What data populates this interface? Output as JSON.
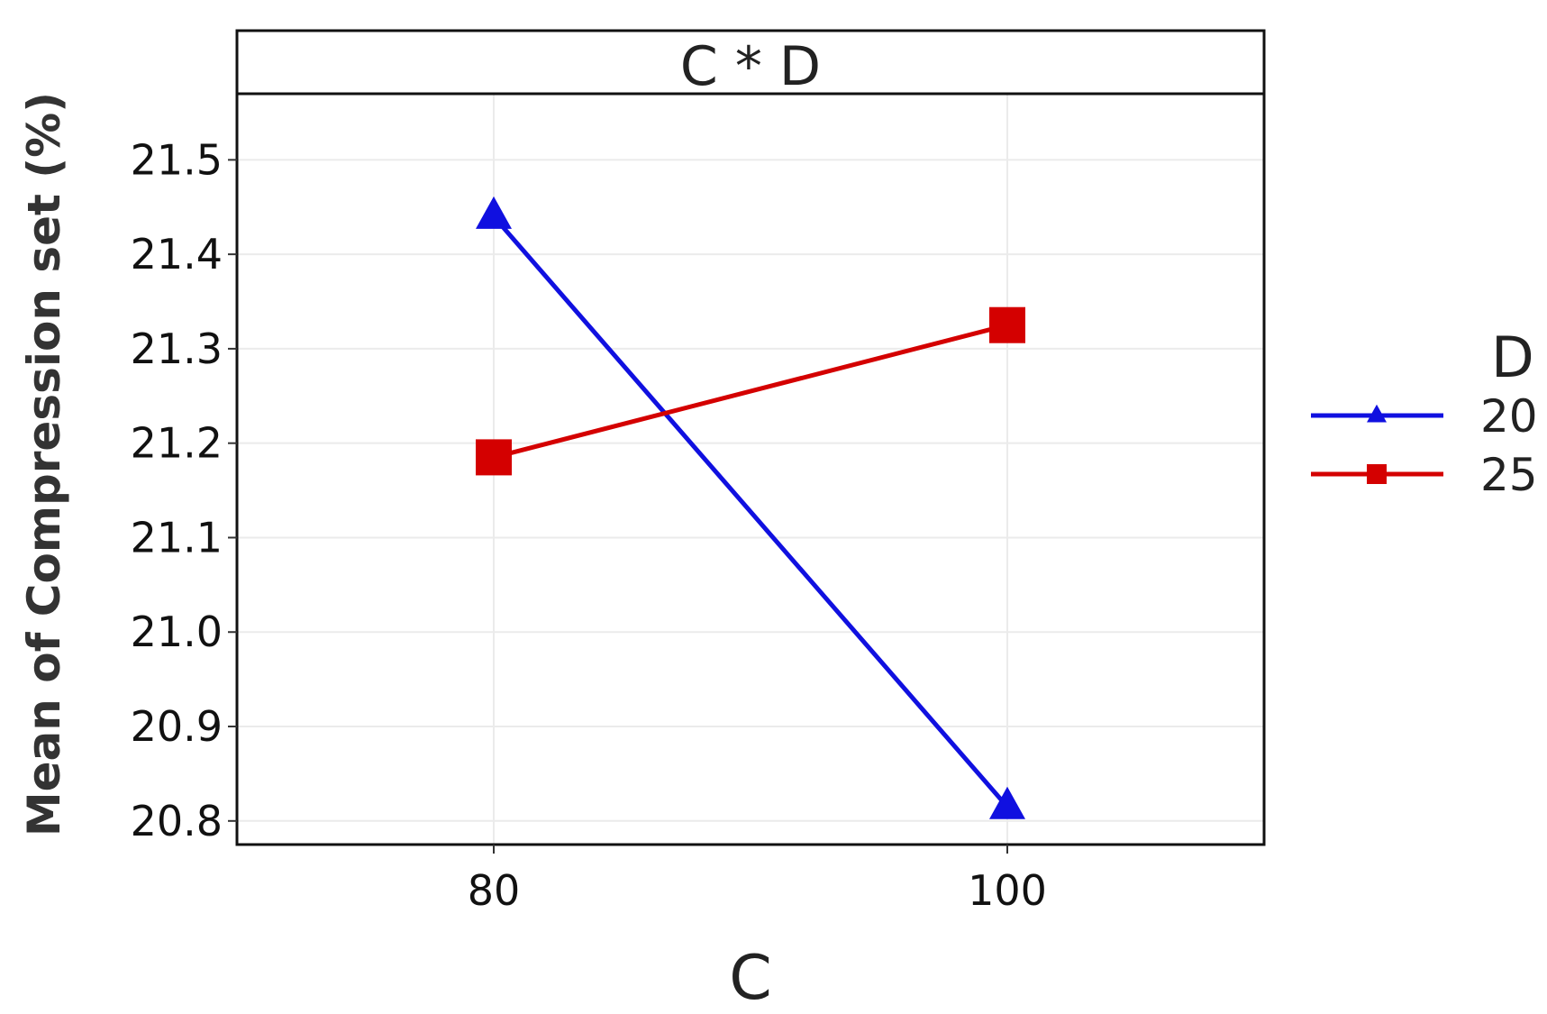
{
  "chart_data": {
    "type": "line",
    "facet_title": "C * D",
    "xlabel": "C",
    "ylabel": "Mean of Compression set (%)",
    "categories": [
      "80",
      "100"
    ],
    "ylim": [
      20.775,
      21.57
    ],
    "yticks": [
      "20.8",
      "20.9",
      "21.0",
      "21.1",
      "21.2",
      "21.3",
      "21.4",
      "21.5"
    ],
    "grid": true,
    "legend": {
      "title": "D",
      "position": "right"
    },
    "series": [
      {
        "name": "20",
        "values": [
          21.44,
          20.815
        ],
        "color": "#1010e0",
        "marker": "triangle"
      },
      {
        "name": "25",
        "values": [
          21.185,
          21.325
        ],
        "color": "#d40000",
        "marker": "square"
      }
    ]
  }
}
